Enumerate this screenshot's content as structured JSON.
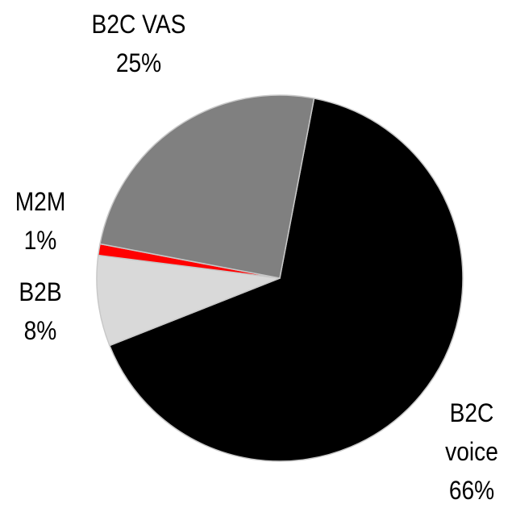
{
  "chart_data": {
    "type": "pie",
    "categories": [
      "B2C voice",
      "B2B",
      "M2M",
      "B2C VAS"
    ],
    "values": [
      66,
      8,
      1,
      25
    ],
    "value_labels": [
      "66%",
      "8%",
      "1%",
      "25%"
    ],
    "colors": [
      "#000000",
      "#d9d9d9",
      "#ff0000",
      "#808080"
    ]
  }
}
